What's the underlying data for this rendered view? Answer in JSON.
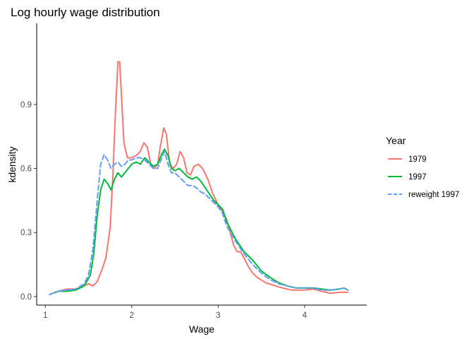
{
  "chart_data": {
    "type": "line",
    "title": "Log hourly wage distribution",
    "xlabel": "Wage",
    "ylabel": "kdensity",
    "xlim": [
      0.9,
      4.72
    ],
    "ylim": [
      -0.04,
      1.28
    ],
    "xticks": [
      1,
      2,
      3,
      4
    ],
    "yticks": [
      0.0,
      0.3,
      0.6,
      0.9
    ],
    "ytick_labels": [
      "0.0",
      "0.3",
      "0.6",
      "0.9"
    ],
    "grid": false,
    "legend": {
      "title": "Year",
      "position": "right"
    },
    "series": [
      {
        "name": "1979",
        "color": "#F8766D",
        "dash": "solid",
        "points": [
          [
            1.05,
            0.01
          ],
          [
            1.15,
            0.025
          ],
          [
            1.25,
            0.035
          ],
          [
            1.35,
            0.035
          ],
          [
            1.45,
            0.05
          ],
          [
            1.5,
            0.06
          ],
          [
            1.55,
            0.05
          ],
          [
            1.6,
            0.07
          ],
          [
            1.65,
            0.12
          ],
          [
            1.7,
            0.18
          ],
          [
            1.75,
            0.32
          ],
          [
            1.78,
            0.55
          ],
          [
            1.81,
            0.85
          ],
          [
            1.84,
            1.1
          ],
          [
            1.86,
            1.1
          ],
          [
            1.88,
            0.95
          ],
          [
            1.91,
            0.72
          ],
          [
            1.95,
            0.65
          ],
          [
            2.0,
            0.65
          ],
          [
            2.05,
            0.66
          ],
          [
            2.1,
            0.68
          ],
          [
            2.14,
            0.72
          ],
          [
            2.18,
            0.7
          ],
          [
            2.22,
            0.62
          ],
          [
            2.26,
            0.6
          ],
          [
            2.3,
            0.62
          ],
          [
            2.33,
            0.7
          ],
          [
            2.37,
            0.79
          ],
          [
            2.4,
            0.76
          ],
          [
            2.44,
            0.62
          ],
          [
            2.48,
            0.6
          ],
          [
            2.52,
            0.62
          ],
          [
            2.56,
            0.68
          ],
          [
            2.6,
            0.65
          ],
          [
            2.64,
            0.58
          ],
          [
            2.68,
            0.57
          ],
          [
            2.72,
            0.61
          ],
          [
            2.77,
            0.62
          ],
          [
            2.82,
            0.6
          ],
          [
            2.88,
            0.55
          ],
          [
            2.94,
            0.48
          ],
          [
            3.0,
            0.43
          ],
          [
            3.05,
            0.4
          ],
          [
            3.1,
            0.36
          ],
          [
            3.14,
            0.3
          ],
          [
            3.18,
            0.24
          ],
          [
            3.22,
            0.21
          ],
          [
            3.26,
            0.21
          ],
          [
            3.3,
            0.18
          ],
          [
            3.35,
            0.14
          ],
          [
            3.4,
            0.11
          ],
          [
            3.45,
            0.09
          ],
          [
            3.55,
            0.065
          ],
          [
            3.7,
            0.045
          ],
          [
            3.85,
            0.03
          ],
          [
            4.0,
            0.03
          ],
          [
            4.1,
            0.035
          ],
          [
            4.2,
            0.025
          ],
          [
            4.3,
            0.015
          ],
          [
            4.4,
            0.02
          ],
          [
            4.48,
            0.02
          ],
          [
            4.5,
            0.02
          ]
        ]
      },
      {
        "name": "1997",
        "color": "#00BA38",
        "dash": "solid",
        "points": [
          [
            1.05,
            0.01
          ],
          [
            1.15,
            0.025
          ],
          [
            1.25,
            0.025
          ],
          [
            1.35,
            0.03
          ],
          [
            1.45,
            0.05
          ],
          [
            1.52,
            0.1
          ],
          [
            1.56,
            0.2
          ],
          [
            1.6,
            0.38
          ],
          [
            1.64,
            0.5
          ],
          [
            1.68,
            0.55
          ],
          [
            1.72,
            0.53
          ],
          [
            1.76,
            0.5
          ],
          [
            1.8,
            0.55
          ],
          [
            1.84,
            0.58
          ],
          [
            1.88,
            0.56
          ],
          [
            1.92,
            0.58
          ],
          [
            1.96,
            0.6
          ],
          [
            2.0,
            0.62
          ],
          [
            2.05,
            0.63
          ],
          [
            2.1,
            0.62
          ],
          [
            2.15,
            0.65
          ],
          [
            2.2,
            0.63
          ],
          [
            2.25,
            0.61
          ],
          [
            2.3,
            0.62
          ],
          [
            2.35,
            0.67
          ],
          [
            2.38,
            0.69
          ],
          [
            2.42,
            0.66
          ],
          [
            2.46,
            0.6
          ],
          [
            2.5,
            0.59
          ],
          [
            2.55,
            0.6
          ],
          [
            2.6,
            0.58
          ],
          [
            2.65,
            0.56
          ],
          [
            2.7,
            0.55
          ],
          [
            2.75,
            0.56
          ],
          [
            2.8,
            0.54
          ],
          [
            2.85,
            0.51
          ],
          [
            2.9,
            0.48
          ],
          [
            2.95,
            0.45
          ],
          [
            3.0,
            0.43
          ],
          [
            3.05,
            0.41
          ],
          [
            3.1,
            0.35
          ],
          [
            3.2,
            0.27
          ],
          [
            3.3,
            0.21
          ],
          [
            3.4,
            0.17
          ],
          [
            3.5,
            0.12
          ],
          [
            3.6,
            0.09
          ],
          [
            3.7,
            0.065
          ],
          [
            3.8,
            0.05
          ],
          [
            3.9,
            0.04
          ],
          [
            4.0,
            0.04
          ],
          [
            4.1,
            0.04
          ],
          [
            4.2,
            0.035
          ],
          [
            4.3,
            0.03
          ],
          [
            4.4,
            0.035
          ],
          [
            4.46,
            0.04
          ],
          [
            4.5,
            0.03
          ]
        ]
      },
      {
        "name": "reweight 1997",
        "color": "#619CFF",
        "dash": "dashed",
        "points": [
          [
            1.05,
            0.01
          ],
          [
            1.15,
            0.025
          ],
          [
            1.25,
            0.03
          ],
          [
            1.35,
            0.035
          ],
          [
            1.45,
            0.06
          ],
          [
            1.5,
            0.1
          ],
          [
            1.55,
            0.22
          ],
          [
            1.6,
            0.45
          ],
          [
            1.64,
            0.62
          ],
          [
            1.68,
            0.665
          ],
          [
            1.72,
            0.64
          ],
          [
            1.76,
            0.6
          ],
          [
            1.8,
            0.62
          ],
          [
            1.84,
            0.63
          ],
          [
            1.88,
            0.61
          ],
          [
            1.92,
            0.62
          ],
          [
            1.96,
            0.64
          ],
          [
            2.0,
            0.64
          ],
          [
            2.05,
            0.65
          ],
          [
            2.1,
            0.65
          ],
          [
            2.15,
            0.64
          ],
          [
            2.2,
            0.62
          ],
          [
            2.25,
            0.6
          ],
          [
            2.3,
            0.6
          ],
          [
            2.35,
            0.65
          ],
          [
            2.38,
            0.68
          ],
          [
            2.42,
            0.62
          ],
          [
            2.46,
            0.58
          ],
          [
            2.5,
            0.58
          ],
          [
            2.55,
            0.56
          ],
          [
            2.6,
            0.54
          ],
          [
            2.65,
            0.52
          ],
          [
            2.7,
            0.52
          ],
          [
            2.75,
            0.51
          ],
          [
            2.8,
            0.49
          ],
          [
            2.85,
            0.48
          ],
          [
            2.9,
            0.46
          ],
          [
            2.95,
            0.44
          ],
          [
            3.0,
            0.42
          ],
          [
            3.05,
            0.39
          ],
          [
            3.1,
            0.33
          ],
          [
            3.2,
            0.26
          ],
          [
            3.3,
            0.2
          ],
          [
            3.4,
            0.15
          ],
          [
            3.5,
            0.11
          ],
          [
            3.6,
            0.08
          ],
          [
            3.7,
            0.06
          ],
          [
            3.8,
            0.05
          ],
          [
            3.9,
            0.04
          ],
          [
            4.0,
            0.04
          ],
          [
            4.1,
            0.04
          ],
          [
            4.2,
            0.03
          ],
          [
            4.3,
            0.03
          ],
          [
            4.4,
            0.035
          ],
          [
            4.46,
            0.04
          ],
          [
            4.5,
            0.03
          ]
        ]
      }
    ]
  }
}
